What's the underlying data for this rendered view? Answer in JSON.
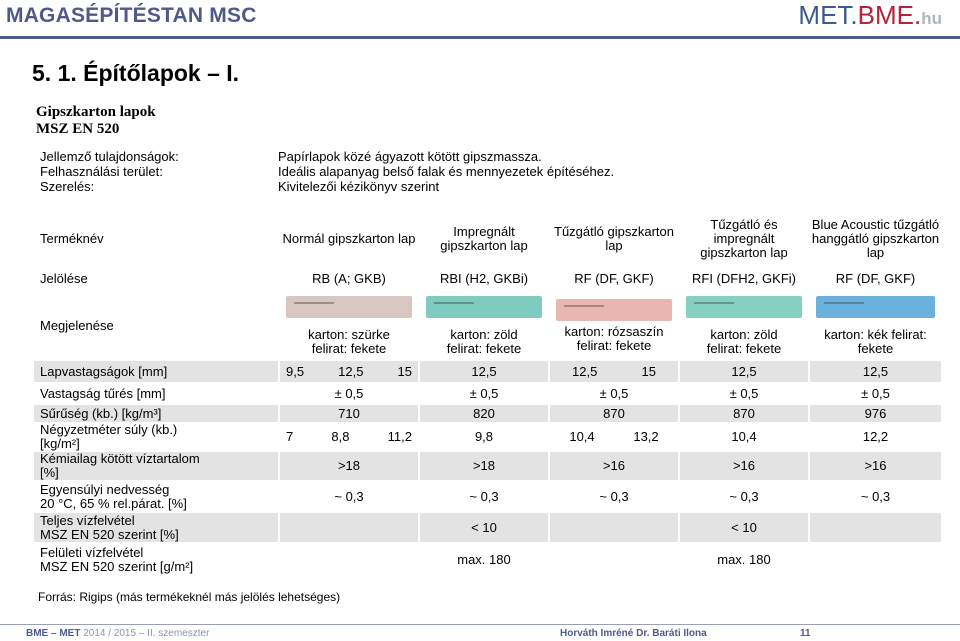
{
  "header": {
    "title": "MAGASÉPÍTÉSTAN  MSC",
    "logo_met": "MET.",
    "logo_bme": "BME.",
    "logo_hu": "hu"
  },
  "slide_title": "5. 1. Építőlapok – I.",
  "doc": {
    "title_line1": "Gipszkarton lapok",
    "title_line2": "MSZ EN 520",
    "props": [
      {
        "label": "Jellemző tulajdonságok:",
        "value": "Papírlapok közé ágyazott kötött gipszmasszа."
      },
      {
        "label": "Felhasználási terület:",
        "value": "Ideális alapanyag belső falak és mennyezetek építéséhez."
      },
      {
        "label": "Szerelés:",
        "value": "Kivitelezői kézikönyv szerint"
      }
    ]
  },
  "table": {
    "row_termeknev": {
      "label": "Terméknév",
      "cols": [
        "Normál gipszkarton lap",
        "Impregnált gipszkarton lap",
        "Tűzgátló gipszkarton lap",
        "Tűzgátló és impregnált gipszkarton lap",
        "Blue Acoustic tűzgátló hanggátló gipszkarton lap"
      ]
    },
    "row_jeloles": {
      "label": "Jelölése",
      "cols": [
        "RB (A; GKB)",
        "RBI (H2, GKBi)",
        "RF (DF, GKF)",
        "RFI (DFH2, GKFi)",
        "RF (DF, GKF)"
      ]
    },
    "row_megjelenes": {
      "label": "Megjelenése",
      "cols": [
        "karton: szürke felirat: fekete",
        "karton: zöld felirat: fekete",
        "karton: rózsaszín felirat: fekete",
        "karton: zöld felirat: fekete",
        "karton: kék felirat: fekete"
      ],
      "swatch_colors": [
        "#d8c6c0",
        "#7fcbc0",
        "#e9b6b0",
        "#86d0c2",
        "#6ab2dc"
      ]
    },
    "row_lapvastagsag": {
      "label": "Lapvastagságok [mm]",
      "c1": [
        "9,5",
        "12,5",
        "15"
      ],
      "c2": "12,5",
      "c3": [
        "12,5",
        "15"
      ],
      "c4": "12,5",
      "c5": "12,5"
    },
    "row_tures": {
      "label": "Vastagság tűrés [mm]",
      "cols": [
        "± 0,5",
        "± 0,5",
        "± 0,5",
        "± 0,5",
        "± 0,5"
      ]
    },
    "row_suruseg": {
      "label": "Sűrűség (kb.) [kg/m³]",
      "cols": [
        "710",
        "820",
        "870",
        "870",
        "976"
      ]
    },
    "row_negyzetmeter": {
      "label_line1": "Négyzetméter súly (kb.)",
      "label_line2": "[kg/m²]",
      "c1": [
        "7",
        "8,8",
        "11,2"
      ],
      "c2": "9,8",
      "c3": [
        "10,4",
        "13,2"
      ],
      "c4": "10,4",
      "c5": "12,2"
    },
    "row_kemiai": {
      "label_line1": "Kémiailag kötött víztartalom",
      "label_line2": "[%]",
      "cols": [
        ">18",
        ">18",
        ">16",
        ">16",
        ">16"
      ]
    },
    "row_egyensulyi": {
      "label_line1": "Egyensúlyi nedvesség",
      "label_line2": "20 °C, 65 % rel.párat. [%]",
      "cols": [
        "~ 0,3",
        "~ 0,3",
        "~ 0,3",
        "~ 0,3",
        "~ 0,3"
      ]
    },
    "row_teljes": {
      "label_line1": "Teljes vízfelvétel",
      "label_line2": "MSZ EN 520 szerint [%]",
      "cols": [
        "",
        "< 10",
        "",
        "< 10",
        ""
      ]
    },
    "row_feluleti": {
      "label_line1": "Felületi vízfelvétel",
      "label_line2": "MSZ EN 520 szerint [g/m²]",
      "cols": [
        "",
        "max. 180",
        "",
        "max. 180",
        ""
      ]
    }
  },
  "footnote": "Forrás: Rigips  (más termékeknél más jelölés lehetséges)",
  "footer": {
    "left_bold": "BME – MET",
    "left_light": " 2014 / 2015 – II. szemeszter",
    "author": "Horváth Imréné Dr. Baráti Ilona",
    "page": "11"
  }
}
